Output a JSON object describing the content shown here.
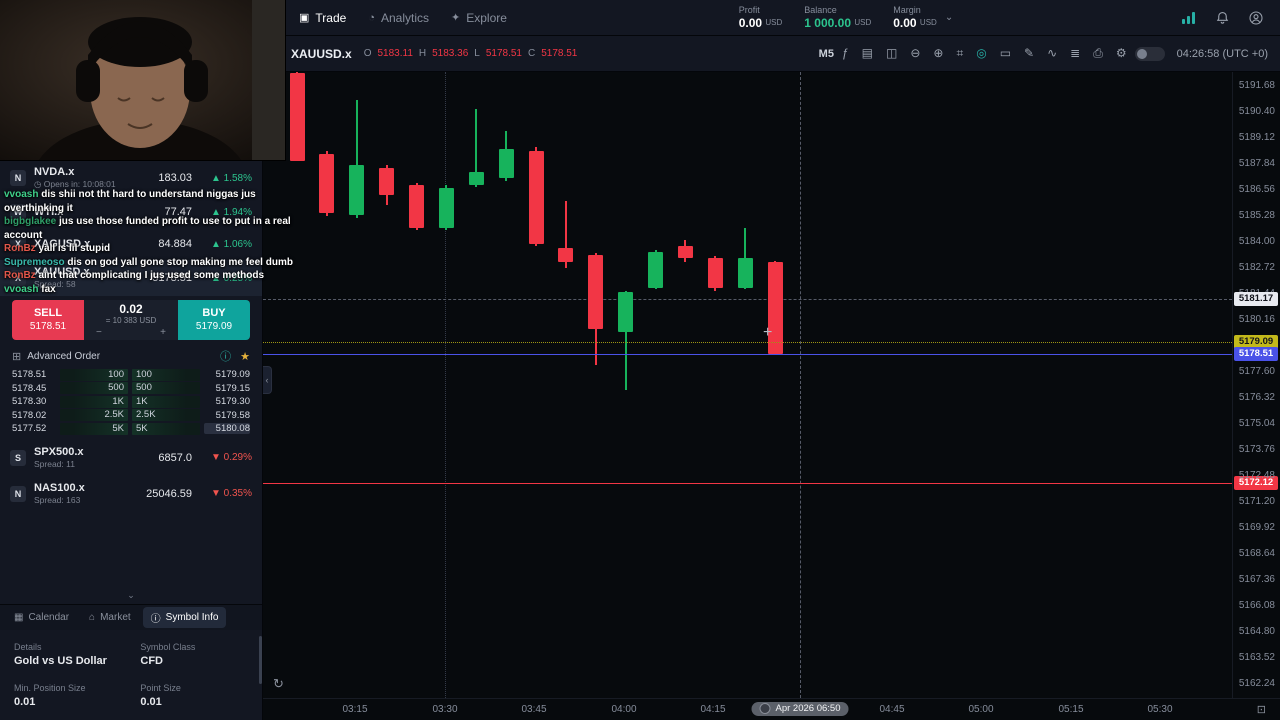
{
  "topbar": {
    "nav": [
      {
        "id": "trade",
        "label": "Trade",
        "glyph": "▣",
        "icon": "trade-icon",
        "active": true
      },
      {
        "id": "analytics",
        "label": "Analytics",
        "glyph": "◔",
        "icon": "analytics-icon",
        "active": false
      },
      {
        "id": "explore",
        "label": "Explore",
        "glyph": "✦",
        "icon": "explore-icon",
        "active": false
      }
    ],
    "stats": [
      {
        "label": "Profit",
        "value": "0.00",
        "currency": "USD",
        "accent": false
      },
      {
        "label": "Balance",
        "value": "1 000.00",
        "currency": "USD",
        "accent": true
      },
      {
        "label": "Margin",
        "value": "0.00",
        "currency": "USD",
        "accent": false
      }
    ]
  },
  "chart_header": {
    "symbol": "XAUUSD.x",
    "ohlc": [
      {
        "k": "O",
        "v": "5183.11"
      },
      {
        "k": "H",
        "v": "5183.36"
      },
      {
        "k": "L",
        "v": "5178.51"
      },
      {
        "k": "C",
        "v": "5178.51"
      }
    ],
    "timeframe": "M5",
    "clock": "04:26:58 (UTC +0)",
    "toolbar_icons": [
      {
        "name": "indicators-icon",
        "glyph": "ƒ",
        "active": false
      },
      {
        "name": "candles-style-icon",
        "glyph": "▤",
        "active": false
      },
      {
        "name": "compare-layout-icon",
        "glyph": "◫",
        "active": false
      },
      {
        "name": "zoom-out-icon",
        "glyph": "⊖",
        "active": false
      },
      {
        "name": "zoom-in-icon",
        "glyph": "⊕",
        "active": false
      },
      {
        "name": "snapshot-icon",
        "glyph": "⌗",
        "active": false
      },
      {
        "name": "crosshair-target-icon",
        "glyph": "◎",
        "active": true
      },
      {
        "name": "multi-monitor-icon",
        "glyph": "▭",
        "active": false
      },
      {
        "name": "drawing-tools-icon",
        "glyph": "✎",
        "active": false
      },
      {
        "name": "performance-icon",
        "glyph": "∿",
        "active": false
      },
      {
        "name": "object-tree-icon",
        "glyph": "≣",
        "active": false
      },
      {
        "name": "print-icon",
        "glyph": "⎙",
        "active": false
      },
      {
        "name": "chart-settings-icon",
        "glyph": "⚙",
        "active": false
      }
    ]
  },
  "chat": {
    "messages": [
      {
        "user": "vvoash",
        "color": "#3fd08a",
        "text": "dis shii not tht hard to understand niggas jus overthinking it"
      },
      {
        "user": "bigbglakee",
        "color": "#2f9e68",
        "text": "jus use those funded profit to use to put in a real account"
      },
      {
        "user": "RonBz",
        "color": "#e3574b",
        "text": "yall is lil stupid"
      },
      {
        "user": "Supremeoso",
        "color": "#38b8ab",
        "text": "dis on god yall gone stop making me feel dumb"
      },
      {
        "user": "RonBz",
        "color": "#e3574b",
        "text": "aint that complicating I jus used some methods"
      },
      {
        "user": "vvoash",
        "color": "#3fd08a",
        "text": "fax"
      }
    ]
  },
  "watchlist_top": [
    {
      "symbol": "NVDA.x",
      "initial": "N",
      "sub": "Opens in: 10:08:01",
      "sub_icon": "◷",
      "price": "183.03",
      "change": "1.58%",
      "dir": "up",
      "selected": false
    },
    {
      "symbol": "WTI.x",
      "initial": "W",
      "sub": "",
      "sub_icon": "",
      "price": "77.47",
      "change": "1.94%",
      "dir": "up",
      "selected": false
    },
    {
      "symbol": "XAGUSD.x",
      "initial": "X",
      "sub": "",
      "sub_icon": "",
      "price": "84.884",
      "change": "1.06%",
      "dir": "up",
      "selected": false
    },
    {
      "symbol": "XAUUSD.x",
      "initial": "X",
      "sub": "Spread: 58",
      "sub_icon": "",
      "price": "5178.51",
      "change": "0.25%",
      "dir": "up",
      "selected": true
    }
  ],
  "watchlist_bottom": [
    {
      "symbol": "SPX500.x",
      "initial": "S",
      "sub": "Spread: 11",
      "sub_icon": "",
      "price": "6857.0",
      "change": "0.29%",
      "dir": "down",
      "selected": false
    },
    {
      "symbol": "NAS100.x",
      "initial": "N",
      "sub": "Spread: 163",
      "sub_icon": "",
      "price": "25046.59",
      "change": "0.35%",
      "dir": "down",
      "selected": false
    }
  ],
  "order_panel": {
    "sell_label": "SELL",
    "sell_price": "5178.51",
    "qty": "0.02",
    "qty_usd": "= 10 383 USD",
    "buy_label": "BUY",
    "buy_price": "5179.09",
    "advanced_label": "Advanced Order"
  },
  "dom_rows": [
    {
      "bid_price": "5178.51",
      "bid_size": "100",
      "ask_size": "100",
      "ask_price": "5179.09"
    },
    {
      "bid_price": "5178.45",
      "bid_size": "500",
      "ask_size": "500",
      "ask_price": "5179.15"
    },
    {
      "bid_price": "5178.30",
      "bid_size": "1K",
      "ask_size": "1K",
      "ask_price": "5179.30"
    },
    {
      "bid_price": "5178.02",
      "bid_size": "2.5K",
      "ask_size": "2.5K",
      "ask_price": "5179.58"
    },
    {
      "bid_price": "5177.52",
      "bid_size": "5K",
      "ask_size": "5K",
      "ask_price": "5180.08"
    }
  ],
  "bottom_tabs": [
    {
      "label": "Calendar",
      "glyph": "▦",
      "icon": "calendar-icon",
      "active": false
    },
    {
      "label": "Market",
      "glyph": "⌂",
      "icon": "market-icon",
      "active": false
    },
    {
      "label": "Symbol Info",
      "glyph": "ⓘ",
      "icon": "symbol-info-icon",
      "active": true
    }
  ],
  "symbol_info": [
    {
      "label": "Details",
      "value": "Gold vs US Dollar"
    },
    {
      "label": "Symbol Class",
      "value": "CFD"
    },
    {
      "label": "Min. Position Size",
      "value": "0.01"
    },
    {
      "label": "Point Size",
      "value": "0.01"
    }
  ],
  "colors": {
    "accent": "#27b0a6",
    "up": "#2cc48e",
    "down": "#f0544e",
    "candle_up": "#17b35c",
    "candle_down": "#f23645",
    "sell": "#e73a52",
    "buy": "#0fa49d"
  },
  "chart_data": {
    "type": "candlestick",
    "symbol": "XAUUSD.x",
    "timeframe": "M5",
    "ohlc_display": {
      "o": "5183.11",
      "h": "5183.36",
      "l": "5178.51",
      "c": "5178.51"
    },
    "price_axis": {
      "min": 5162.24,
      "max": 5191.68,
      "tick_step": 1.28,
      "ticks": [
        5191.68,
        5190.4,
        5189.12,
        5187.84,
        5186.56,
        5185.28,
        5184.0,
        5182.72,
        5181.44,
        5180.16,
        5177.6,
        5176.32,
        5175.04,
        5173.76,
        5172.48,
        5171.2,
        5169.92,
        5168.64,
        5167.36,
        5166.08,
        5164.8,
        5163.52,
        5162.24
      ]
    },
    "time_axis": [
      "03:15",
      "03:30",
      "03:45",
      "04:00",
      "04:15",
      "04:45",
      "05:00",
      "05:15",
      "05:30"
    ],
    "candles": [
      {
        "o": 5192.3,
        "h": 5192.4,
        "l": 5188.0,
        "c": 5188.0
      },
      {
        "o": 5188.35,
        "h": 5188.5,
        "l": 5185.3,
        "c": 5185.45
      },
      {
        "o": 5185.35,
        "h": 5191.0,
        "l": 5185.2,
        "c": 5187.8
      },
      {
        "o": 5187.65,
        "h": 5187.8,
        "l": 5185.8,
        "c": 5186.3
      },
      {
        "o": 5186.8,
        "h": 5186.9,
        "l": 5184.6,
        "c": 5184.7
      },
      {
        "o": 5184.7,
        "h": 5186.8,
        "l": 5184.6,
        "c": 5186.65
      },
      {
        "o": 5186.8,
        "h": 5190.55,
        "l": 5186.7,
        "c": 5187.45
      },
      {
        "o": 5187.15,
        "h": 5189.45,
        "l": 5187.0,
        "c": 5188.6
      },
      {
        "o": 5188.5,
        "h": 5188.7,
        "l": 5183.8,
        "c": 5183.9
      },
      {
        "o": 5183.7,
        "h": 5186.0,
        "l": 5182.7,
        "c": 5183.0
      },
      {
        "o": 5183.35,
        "h": 5183.45,
        "l": 5177.95,
        "c": 5179.7
      },
      {
        "o": 5179.55,
        "h": 5181.6,
        "l": 5176.7,
        "c": 5181.55
      },
      {
        "o": 5181.75,
        "h": 5183.6,
        "l": 5181.7,
        "c": 5183.5
      },
      {
        "o": 5183.8,
        "h": 5184.1,
        "l": 5183.0,
        "c": 5183.2
      },
      {
        "o": 5183.2,
        "h": 5183.3,
        "l": 5181.6,
        "c": 5181.75
      },
      {
        "o": 5181.75,
        "h": 5184.7,
        "l": 5181.7,
        "c": 5183.2
      },
      {
        "o": 5183.0,
        "h": 5183.05,
        "l": 5178.45,
        "c": 5178.51
      }
    ],
    "lines": [
      {
        "name": "ask-price-line",
        "price": 5179.09,
        "label": "5179.09",
        "style": "dotted",
        "color": "#9d9414",
        "label_bg": "#c3b91b",
        "label_fg": "#11131a"
      },
      {
        "name": "last-price-line",
        "price": 5178.51,
        "label": "5178.51",
        "style": "solid",
        "color": "#4a52e8",
        "label_bg": "#4a52e8",
        "label_fg": "#ffffff"
      },
      {
        "name": "alert-price-line",
        "price": 5172.12,
        "label": "5172.12",
        "style": "solid",
        "color": "#f23645",
        "label_bg": "#f23645",
        "label_fg": "#ffffff"
      }
    ],
    "crosshair": {
      "price": 5181.17,
      "price_label": "5181.17",
      "time_label": "Apr 2026 06:50"
    }
  }
}
